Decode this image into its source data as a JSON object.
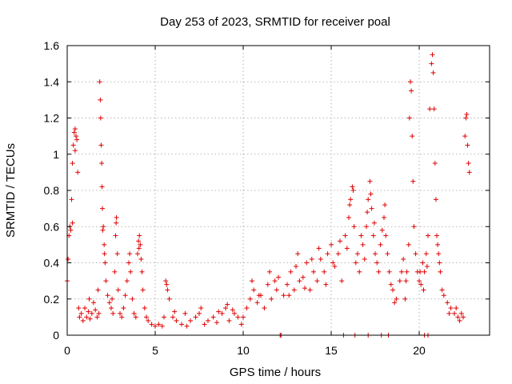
{
  "chart_data": {
    "type": "scatter",
    "title": "Day 253 of 2023, SRMTID for receiver poal",
    "xlabel": "GPS time / hours",
    "ylabel": "SRMTID / TECUs",
    "xlim": [
      0,
      24
    ],
    "ylim": [
      0,
      1.6
    ],
    "xticks": [
      0,
      5,
      10,
      15,
      20
    ],
    "xtick_labels": [
      "0",
      "5",
      "10",
      "15",
      "20"
    ],
    "yticks": [
      0,
      0.2,
      0.4,
      0.6,
      0.8,
      1.0,
      1.2,
      1.4,
      1.6
    ],
    "ytick_labels": [
      "0",
      "0.2",
      "0.4",
      "0.6",
      "0.8",
      "1",
      "1.2",
      "1.4",
      "1.6"
    ],
    "grid": true,
    "marker": "plus",
    "color": "#e00000",
    "series": [
      {
        "name": "SRMTID",
        "points": [
          [
            0.0,
            0.3
          ],
          [
            0.05,
            0.42
          ],
          [
            0.1,
            0.55
          ],
          [
            0.15,
            0.6
          ],
          [
            0.2,
            0.58
          ],
          [
            0.25,
            0.75
          ],
          [
            0.3,
            0.95
          ],
          [
            0.35,
            1.05
          ],
          [
            0.4,
            1.12
          ],
          [
            0.45,
            1.14
          ],
          [
            0.5,
            1.1
          ],
          [
            0.55,
            1.08
          ],
          [
            0.6,
            0.9
          ],
          [
            0.65,
            0.15
          ],
          [
            0.7,
            0.1
          ],
          [
            0.8,
            0.12
          ],
          [
            0.9,
            0.08
          ],
          [
            1.0,
            0.15
          ],
          [
            1.1,
            0.1
          ],
          [
            1.2,
            0.13
          ],
          [
            1.3,
            0.09
          ],
          [
            1.4,
            0.12
          ],
          [
            1.5,
            0.18
          ],
          [
            1.6,
            0.14
          ],
          [
            1.7,
            0.1
          ],
          [
            1.75,
            0.25
          ],
          [
            1.8,
            0.12
          ],
          [
            1.85,
            1.4
          ],
          [
            1.88,
            1.3
          ],
          [
            1.9,
            1.2
          ],
          [
            1.93,
            1.05
          ],
          [
            1.96,
            0.95
          ],
          [
            1.98,
            0.82
          ],
          [
            2.0,
            0.7
          ],
          [
            2.05,
            0.6
          ],
          [
            2.1,
            0.5
          ],
          [
            2.15,
            0.4
          ],
          [
            2.2,
            0.3
          ],
          [
            2.3,
            0.22
          ],
          [
            2.4,
            0.18
          ],
          [
            2.5,
            0.15
          ],
          [
            2.6,
            0.12
          ],
          [
            2.7,
            0.35
          ],
          [
            2.75,
            0.55
          ],
          [
            2.8,
            0.65
          ],
          [
            2.85,
            0.45
          ],
          [
            2.9,
            0.25
          ],
          [
            3.0,
            0.12
          ],
          [
            3.1,
            0.1
          ],
          [
            3.2,
            0.15
          ],
          [
            3.3,
            0.22
          ],
          [
            3.4,
            0.3
          ],
          [
            3.5,
            0.4
          ],
          [
            3.6,
            0.35
          ],
          [
            3.7,
            0.2
          ],
          [
            3.8,
            0.12
          ],
          [
            3.9,
            0.1
          ],
          [
            4.0,
            0.45
          ],
          [
            4.05,
            0.52
          ],
          [
            4.1,
            0.55
          ],
          [
            4.15,
            0.5
          ],
          [
            4.2,
            0.42
          ],
          [
            4.3,
            0.25
          ],
          [
            4.4,
            0.15
          ],
          [
            4.5,
            0.1
          ],
          [
            4.6,
            0.08
          ],
          [
            4.8,
            0.06
          ],
          [
            5.0,
            0.05
          ],
          [
            5.2,
            0.06
          ],
          [
            5.4,
            0.05
          ],
          [
            5.5,
            0.1
          ],
          [
            5.6,
            0.3
          ],
          [
            5.7,
            0.25
          ],
          [
            5.8,
            0.2
          ],
          [
            6.0,
            0.1
          ],
          [
            6.2,
            0.08
          ],
          [
            6.5,
            0.06
          ],
          [
            6.8,
            0.05
          ],
          [
            7.0,
            0.08
          ],
          [
            7.3,
            0.1
          ],
          [
            7.5,
            0.12
          ],
          [
            7.8,
            0.06
          ],
          [
            8.0,
            0.08
          ],
          [
            8.3,
            0.1
          ],
          [
            8.5,
            0.07
          ],
          [
            8.8,
            0.12
          ],
          [
            9.0,
            0.15
          ],
          [
            9.2,
            0.08
          ],
          [
            9.5,
            0.12
          ],
          [
            9.7,
            0.1
          ],
          [
            9.9,
            0.06
          ],
          [
            10.0,
            0.1
          ],
          [
            10.2,
            0.15
          ],
          [
            10.4,
            0.2
          ],
          [
            10.6,
            0.25
          ],
          [
            10.8,
            0.18
          ],
          [
            11.0,
            0.22
          ],
          [
            11.2,
            0.15
          ],
          [
            11.4,
            0.28
          ],
          [
            11.6,
            0.2
          ],
          [
            11.8,
            0.3
          ],
          [
            12.0,
            0.32
          ],
          [
            12.1,
            0.0
          ],
          [
            12.3,
            0.22
          ],
          [
            12.5,
            0.28
          ],
          [
            12.7,
            0.35
          ],
          [
            12.9,
            0.25
          ],
          [
            13.0,
            0.38
          ],
          [
            13.2,
            0.3
          ],
          [
            13.4,
            0.32
          ],
          [
            13.6,
            0.4
          ],
          [
            13.8,
            0.25
          ],
          [
            14.0,
            0.35
          ],
          [
            14.2,
            0.3
          ],
          [
            14.4,
            0.42
          ],
          [
            14.6,
            0.35
          ],
          [
            14.8,
            0.45
          ],
          [
            15.0,
            0.5
          ],
          [
            15.2,
            0.38
          ],
          [
            15.4,
            0.45
          ],
          [
            15.6,
            0.3
          ],
          [
            15.8,
            0.55
          ],
          [
            16.0,
            0.65
          ],
          [
            16.1,
            0.75
          ],
          [
            16.2,
            0.82
          ],
          [
            16.3,
            0.6
          ],
          [
            16.4,
            0.4
          ],
          [
            16.5,
            0.45
          ],
          [
            16.6,
            0.35
          ],
          [
            16.8,
            0.5
          ],
          [
            17.0,
            0.6
          ],
          [
            17.1,
            0.75
          ],
          [
            17.2,
            0.85
          ],
          [
            17.3,
            0.7
          ],
          [
            17.4,
            0.55
          ],
          [
            17.5,
            0.45
          ],
          [
            17.6,
            0.4
          ],
          [
            17.8,
            0.5
          ],
          [
            18.0,
            0.65
          ],
          [
            18.1,
            0.55
          ],
          [
            18.2,
            0.45
          ],
          [
            18.3,
            0.35
          ],
          [
            18.5,
            0.25
          ],
          [
            18.7,
            0.2
          ],
          [
            18.9,
            0.3
          ],
          [
            19.0,
            0.35
          ],
          [
            19.2,
            0.2
          ],
          [
            19.3,
            0.35
          ],
          [
            19.4,
            0.5
          ],
          [
            19.45,
            1.2
          ],
          [
            19.5,
            1.4
          ],
          [
            19.55,
            1.35
          ],
          [
            19.6,
            1.1
          ],
          [
            19.65,
            0.85
          ],
          [
            19.7,
            0.6
          ],
          [
            19.8,
            0.45
          ],
          [
            19.9,
            0.35
          ],
          [
            20.0,
            0.3
          ],
          [
            20.1,
            0.28
          ],
          [
            20.2,
            0.4
          ],
          [
            20.3,
            0.35
          ],
          [
            20.4,
            0.45
          ],
          [
            20.5,
            0.55
          ],
          [
            20.6,
            1.25
          ],
          [
            20.7,
            1.5
          ],
          [
            20.75,
            1.55
          ],
          [
            20.8,
            1.45
          ],
          [
            20.85,
            1.25
          ],
          [
            20.9,
            0.95
          ],
          [
            20.95,
            0.75
          ],
          [
            21.0,
            0.55
          ],
          [
            21.1,
            0.45
          ],
          [
            21.2,
            0.35
          ],
          [
            21.4,
            0.22
          ],
          [
            21.6,
            0.18
          ],
          [
            21.8,
            0.15
          ],
          [
            22.0,
            0.12
          ],
          [
            22.2,
            0.1
          ],
          [
            22.4,
            0.12
          ],
          [
            22.5,
            0.1
          ],
          [
            22.6,
            1.1
          ],
          [
            22.65,
            1.2
          ],
          [
            22.7,
            1.22
          ],
          [
            22.75,
            1.05
          ],
          [
            22.8,
            0.95
          ],
          [
            22.85,
            0.9
          ],
          [
            0.3,
            0.62
          ],
          [
            0.45,
            1.02
          ],
          [
            1.25,
            0.2
          ],
          [
            2.02,
            0.58
          ],
          [
            2.12,
            0.45
          ],
          [
            2.55,
            0.2
          ],
          [
            2.78,
            0.62
          ],
          [
            3.55,
            0.45
          ],
          [
            4.08,
            0.48
          ],
          [
            4.25,
            0.35
          ],
          [
            5.65,
            0.28
          ],
          [
            6.1,
            0.13
          ],
          [
            6.7,
            0.12
          ],
          [
            7.6,
            0.15
          ],
          [
            8.6,
            0.13
          ],
          [
            9.1,
            0.17
          ],
          [
            9.4,
            0.14
          ],
          [
            10.5,
            0.3
          ],
          [
            10.9,
            0.22
          ],
          [
            11.5,
            0.35
          ],
          [
            11.9,
            0.25
          ],
          [
            12.6,
            0.22
          ],
          [
            13.1,
            0.45
          ],
          [
            13.5,
            0.26
          ],
          [
            13.9,
            0.42
          ],
          [
            14.3,
            0.48
          ],
          [
            14.7,
            0.28
          ],
          [
            15.1,
            0.4
          ],
          [
            15.5,
            0.52
          ],
          [
            15.9,
            0.48
          ],
          [
            16.05,
            0.72
          ],
          [
            16.25,
            0.8
          ],
          [
            16.7,
            0.55
          ],
          [
            16.9,
            0.42
          ],
          [
            17.05,
            0.68
          ],
          [
            17.25,
            0.78
          ],
          [
            17.45,
            0.62
          ],
          [
            17.7,
            0.35
          ],
          [
            17.9,
            0.58
          ],
          [
            18.05,
            0.72
          ],
          [
            18.4,
            0.28
          ],
          [
            18.6,
            0.18
          ],
          [
            19.1,
            0.42
          ],
          [
            19.25,
            0.3
          ],
          [
            20.05,
            0.35
          ],
          [
            20.25,
            0.25
          ],
          [
            20.45,
            0.38
          ],
          [
            21.05,
            0.5
          ],
          [
            21.15,
            0.4
          ],
          [
            21.3,
            0.25
          ],
          [
            21.7,
            0.12
          ],
          [
            22.1,
            0.15
          ],
          [
            22.3,
            0.08
          ],
          [
            12.15,
            0.0
          ],
          [
            15.7,
            0.0
          ],
          [
            16.35,
            0.0
          ],
          [
            17.1,
            0.0
          ],
          [
            17.85,
            0.0
          ],
          [
            18.25,
            0.0
          ],
          [
            20.3,
            0.0
          ],
          [
            20.5,
            0.0
          ]
        ]
      }
    ]
  }
}
